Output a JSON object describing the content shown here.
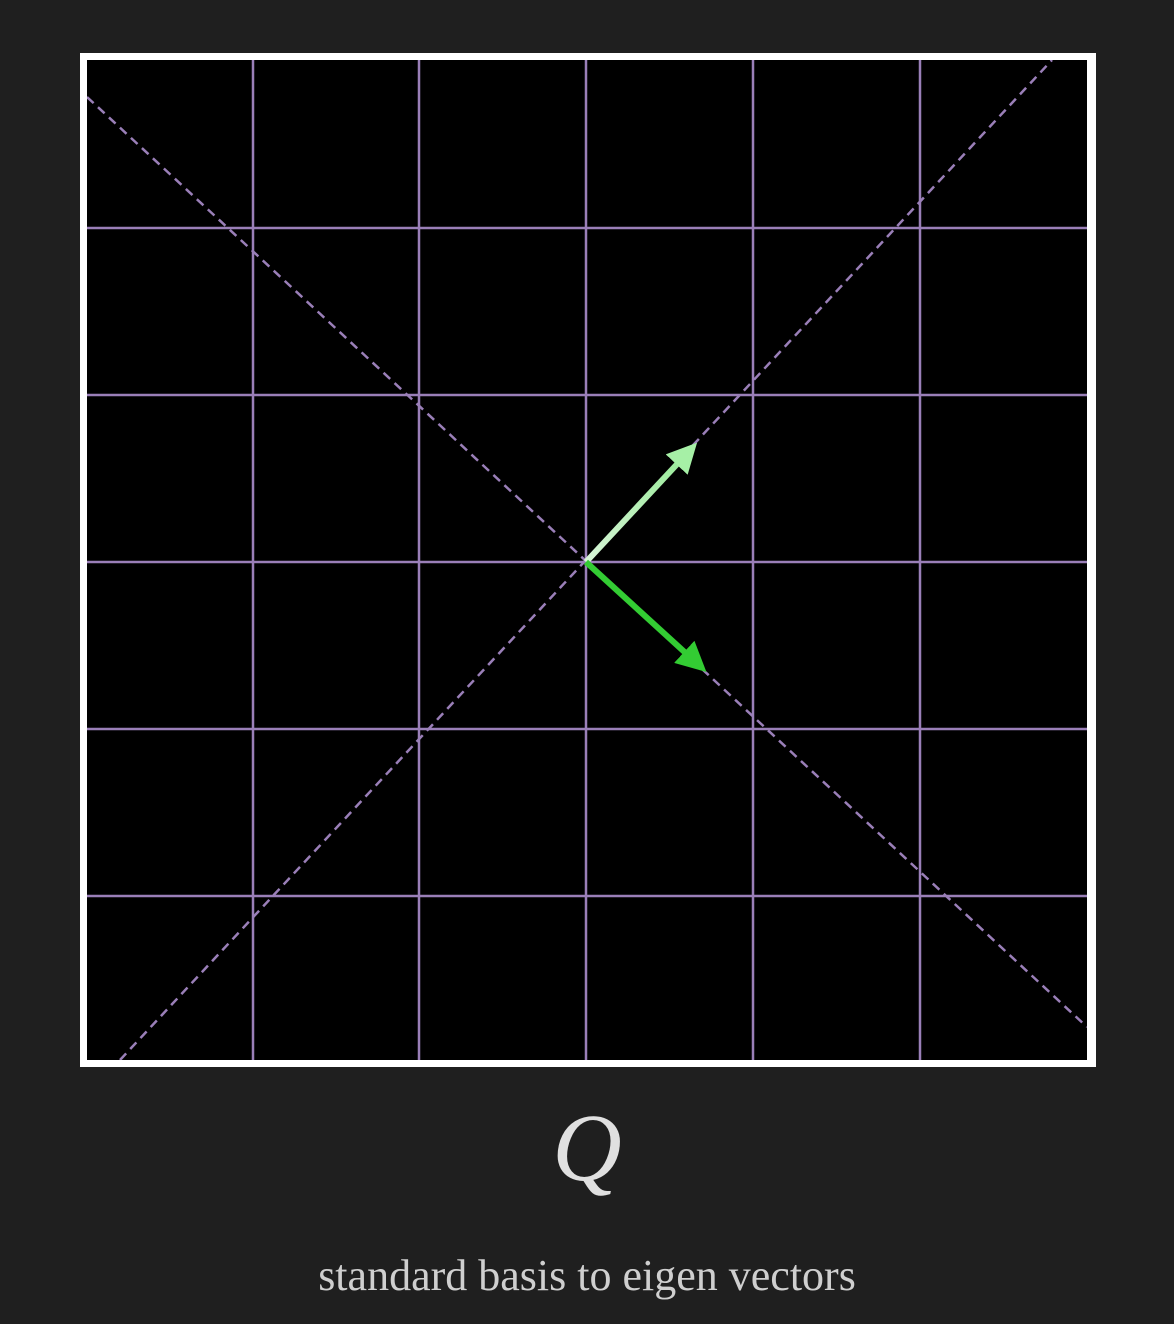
{
  "label": "Q",
  "caption": "standard basis to eigen vectors"
}
